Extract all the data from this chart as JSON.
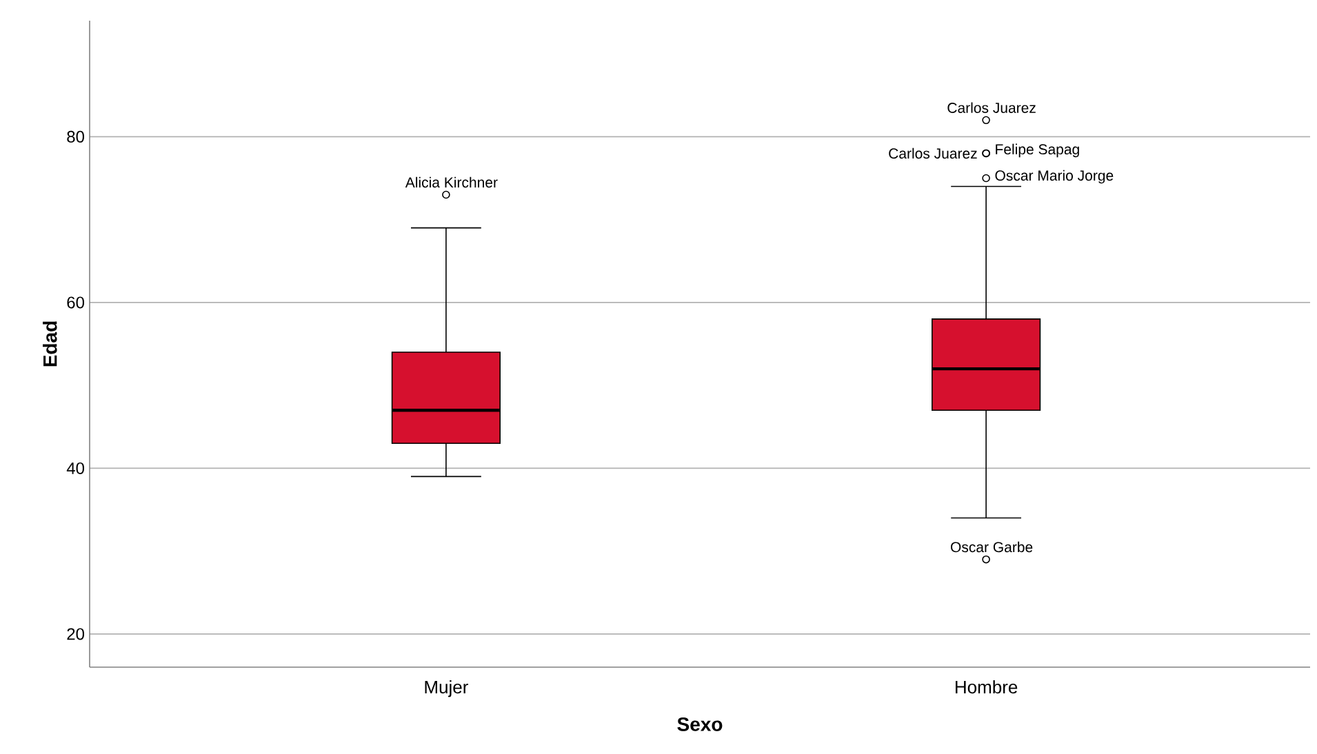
{
  "chart_data": {
    "type": "box",
    "categories": [
      "Mujer",
      "Hombre"
    ],
    "xlabel": "Sexo",
    "ylabel": "Edad",
    "ylim": [
      16,
      94
    ],
    "yticks": [
      20,
      40,
      60,
      80
    ],
    "grid": "y",
    "series": [
      {
        "color": "#d6102e",
        "boxes": [
          {
            "low": 39,
            "q1": 43,
            "median": 47,
            "q3": 54,
            "high": 69
          },
          {
            "low": 34,
            "q1": 47,
            "median": 52,
            "q3": 58,
            "high": 74
          }
        ]
      },
      {
        "type": "scatter",
        "color": "#000000",
        "marker": "circle",
        "x": [
          "Mujer",
          "Hombre",
          "Hombre",
          "Hombre",
          "Hombre",
          "Hombre"
        ],
        "values": [
          73,
          82,
          78,
          78,
          75,
          29
        ]
      }
    ],
    "annotations": [
      {
        "text": "Alicia Kirchner",
        "x": "Mujer",
        "y": 73
      },
      {
        "text": "Carlos Juarez",
        "x": "Hombre",
        "y": 82
      },
      {
        "text": "Carlos Juarez",
        "x": "Hombre",
        "y": 78
      },
      {
        "text": "Felipe Sapag",
        "x": "Hombre",
        "y": 78
      },
      {
        "text": "Oscar Mario Jorge",
        "x": "Hombre",
        "y": 75
      },
      {
        "text": "Oscar Garbe",
        "x": "Hombre",
        "y": 29
      }
    ]
  }
}
